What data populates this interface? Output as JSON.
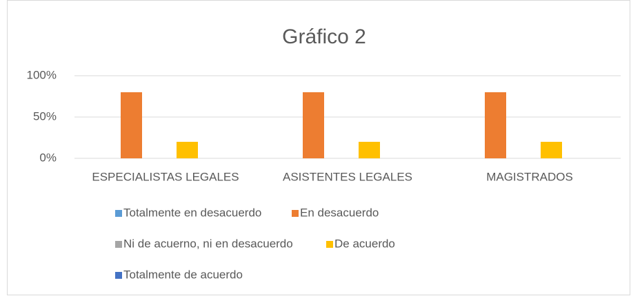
{
  "chart_data": {
    "type": "bar",
    "title": "Gráfico 2",
    "categories": [
      "ESPECIALISTAS LEGALES",
      "ASISTENTES LEGALES",
      "MAGISTRADOS"
    ],
    "series": [
      {
        "name": "Totalmente en desacuerdo",
        "color": "#5b9bd5",
        "values": [
          0,
          0,
          0
        ]
      },
      {
        "name": "En desacuerdo",
        "color": "#ed7d31",
        "values": [
          80,
          80,
          80
        ]
      },
      {
        "name": "Ni de acuerno, ni en desacuerdo",
        "color": "#a5a5a5",
        "values": [
          0,
          0,
          0
        ]
      },
      {
        "name": "De acuerdo",
        "color": "#ffc000",
        "values": [
          20,
          20,
          20
        ]
      },
      {
        "name": "Totalmente de acuerdo",
        "color": "#4472c4",
        "values": [
          0,
          0,
          0
        ]
      }
    ],
    "ylim": [
      0,
      100
    ],
    "yticks": [
      {
        "value": 0,
        "label": "0%"
      },
      {
        "value": 50,
        "label": "50%"
      },
      {
        "value": 100,
        "label": "100%"
      }
    ],
    "grid": true
  }
}
